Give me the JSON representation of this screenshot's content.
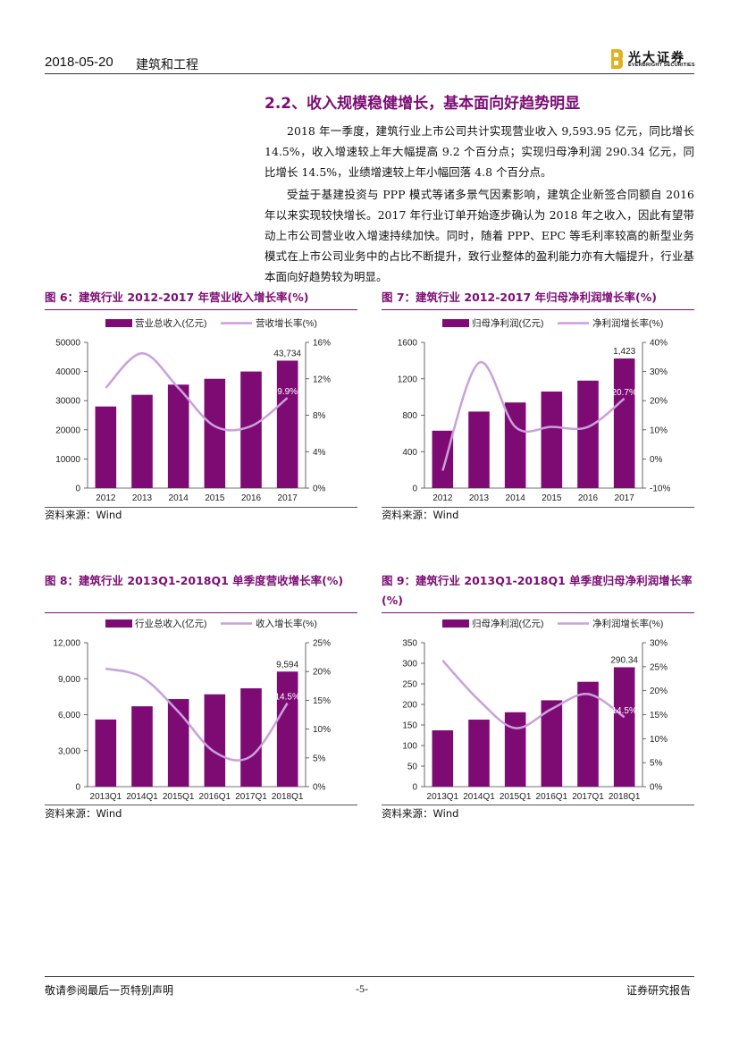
{
  "header": {
    "date": "2018-05-20",
    "sector": "建筑和工程",
    "logo_cn": "光大证券",
    "logo_en": "EVERBRIGHT SECURITIES",
    "brand_color": "#e0b21f"
  },
  "section": {
    "title": "2.2、收入规模稳健增长，基本面向好趋势明显",
    "para1": "2018 年一季度，建筑行业上市公司共计实现营业收入 9,593.95 亿元，同比增长 14.5%，收入增速较上年大幅提高 9.2 个百分点；实现归母净利润 290.34 亿元，同比增长 14.5%，业绩增速较上年小幅回落 4.8 个百分点。",
    "para2": "受益于基建投资与 PPP 模式等诸多景气因素影响，建筑企业新签合同额自 2016 年以来实现较快增长。2017 年行业订单开始逐步确认为 2018 年之收入，因此有望带动上市公司营业收入增速持续加快。同时，随着 PPP、EPC 等毛利率较高的新型业务模式在上市公司业务中的占比不断提升，致行业整体的盈利能力亦有大幅提升，行业基本面向好趋势较为明显。"
  },
  "colors": {
    "bar": "#7d0b73",
    "line": "#c9a0dc",
    "title": "#7b0d73"
  },
  "source_label": "资料来源：Wind",
  "chart_data": [
    {
      "id": "fig6",
      "type": "bar+line",
      "title": "图 6：建筑行业 2012-2017 年营业收入增长率(%)",
      "categories": [
        "2012",
        "2013",
        "2014",
        "2015",
        "2016",
        "2017"
      ],
      "series": [
        {
          "name": "营业总收入(亿元)",
          "axis": "left",
          "kind": "bar",
          "values": [
            28000,
            32000,
            35500,
            37500,
            40000,
            43734
          ]
        },
        {
          "name": "营收增长率(%)",
          "axis": "right",
          "kind": "line",
          "values": [
            11.0,
            14.8,
            11.0,
            6.8,
            6.8,
            9.9
          ]
        }
      ],
      "left_ticks": [
        "0",
        "10000",
        "20000",
        "30000",
        "40000",
        "50000"
      ],
      "left_range": [
        0,
        50000
      ],
      "right_ticks": [
        "0%",
        "4%",
        "8%",
        "12%",
        "16%"
      ],
      "right_range": [
        0,
        16
      ],
      "bar_label": "43,734",
      "line_label": "9.9%"
    },
    {
      "id": "fig7",
      "type": "bar+line",
      "title": "图 7：建筑行业 2012-2017 年归母净利润增长率(%)",
      "categories": [
        "2012",
        "2013",
        "2014",
        "2015",
        "2016",
        "2017"
      ],
      "series": [
        {
          "name": "归母净利润(亿元)",
          "axis": "left",
          "kind": "bar",
          "values": [
            630,
            840,
            940,
            1060,
            1180,
            1423
          ]
        },
        {
          "name": "净利润增长率(%)",
          "axis": "right",
          "kind": "line",
          "values": [
            -4,
            33,
            11,
            11,
            11,
            20.7
          ]
        }
      ],
      "left_ticks": [
        "0",
        "400",
        "800",
        "1200",
        "1600"
      ],
      "left_range": [
        0,
        1600
      ],
      "right_ticks": [
        "-10%",
        "0%",
        "10%",
        "20%",
        "30%",
        "40%"
      ],
      "right_range": [
        -10,
        40
      ],
      "bar_label": "1,423",
      "line_label": "20.7%"
    },
    {
      "id": "fig8",
      "type": "bar+line",
      "title": "图 8：建筑行业 2013Q1-2018Q1 单季度营收增长率(%)",
      "categories": [
        "2013Q1",
        "2014Q1",
        "2015Q1",
        "2016Q1",
        "2017Q1",
        "2018Q1"
      ],
      "series": [
        {
          "name": "行业总收入(亿元)",
          "axis": "left",
          "kind": "bar",
          "values": [
            5600,
            6700,
            7300,
            7700,
            8200,
            9594
          ]
        },
        {
          "name": "收入增长率(%)",
          "axis": "right",
          "kind": "line",
          "values": [
            20.5,
            19.0,
            13.0,
            6.0,
            5.3,
            14.5
          ]
        }
      ],
      "left_ticks": [
        "0",
        "3,000",
        "6,000",
        "9,000",
        "12,000"
      ],
      "left_range": [
        0,
        12000
      ],
      "right_ticks": [
        "0%",
        "5%",
        "10%",
        "15%",
        "20%",
        "25%"
      ],
      "right_range": [
        0,
        25
      ],
      "bar_label": "9,594",
      "line_label": "14.5%"
    },
    {
      "id": "fig9",
      "type": "bar+line",
      "title": "图 9：建筑行业 2013Q1-2018Q1 单季度归母净利润增长率(%)",
      "categories": [
        "2013Q1",
        "2014Q1",
        "2015Q1",
        "2016Q1",
        "2017Q1",
        "2018Q1"
      ],
      "series": [
        {
          "name": "归母净利润(亿元)",
          "axis": "left",
          "kind": "bar",
          "values": [
            137,
            163,
            181,
            210,
            255,
            290.34
          ]
        },
        {
          "name": "净利润增长率(%)",
          "axis": "right",
          "kind": "line",
          "values": [
            26.3,
            18.0,
            12.2,
            16.2,
            19.3,
            14.5
          ]
        }
      ],
      "left_ticks": [
        "0",
        "50",
        "100",
        "150",
        "200",
        "250",
        "300",
        "350"
      ],
      "left_range": [
        0,
        350
      ],
      "right_ticks": [
        "0%",
        "5%",
        "10%",
        "15%",
        "20%",
        "25%",
        "30%"
      ],
      "right_range": [
        0,
        30
      ],
      "bar_label": "290.34",
      "line_label": "14.5%"
    }
  ],
  "footer": {
    "left": "敬请参阅最后一页特别声明",
    "page": "-5-",
    "right": "证券研究报告"
  }
}
